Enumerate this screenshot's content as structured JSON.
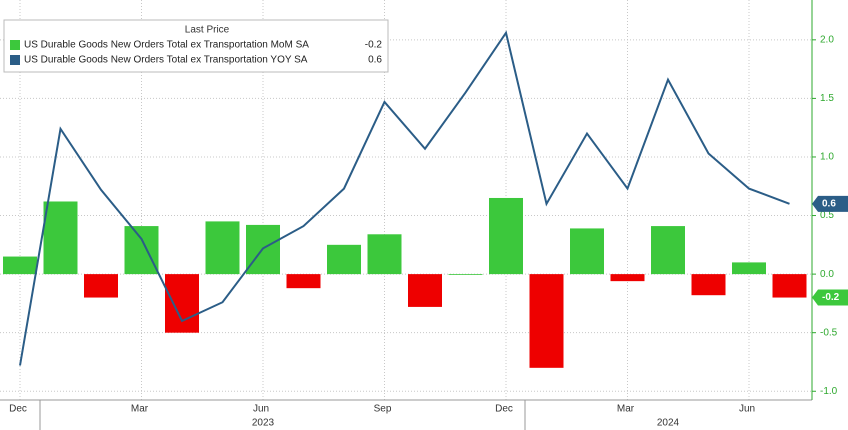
{
  "chart_data": {
    "type": "bar-line",
    "legend_title": "Last Price",
    "categories": [
      "Dec",
      null,
      null,
      "Mar",
      null,
      null,
      "Jun",
      null,
      null,
      "Sep",
      null,
      null,
      "Dec",
      null,
      null,
      "Mar",
      null,
      null,
      "Jun",
      null
    ],
    "year_labels": [
      null,
      null,
      null,
      null,
      null,
      null,
      "2023",
      null,
      null,
      null,
      null,
      null,
      null,
      null,
      null,
      null,
      "2024",
      null,
      null,
      null
    ],
    "series": [
      {
        "name": "US Durable Goods New Orders Total ex Transportation MoM SA",
        "type": "bar",
        "color": "#3cc83c",
        "negative_color": "#ee0000",
        "values": [
          0.15,
          0.62,
          -0.2,
          0.41,
          -0.5,
          0.45,
          0.42,
          -0.12,
          0.25,
          0.34,
          -0.28,
          0.0,
          0.65,
          -0.8,
          0.39,
          -0.06,
          0.41,
          -0.18,
          0.1,
          -0.2
        ]
      },
      {
        "name": "US Durable Goods New Orders Total ex Transportation YOY SA",
        "type": "line",
        "color": "#2b5d87",
        "values": [
          -0.78,
          1.24,
          0.72,
          0.3,
          -0.4,
          -0.24,
          0.22,
          0.41,
          0.73,
          1.47,
          1.07,
          1.55,
          2.06,
          0.6,
          1.2,
          0.73,
          1.66,
          1.03,
          0.73,
          0.6
        ]
      }
    ],
    "ylim": [
      -1.16,
      2.34
    ],
    "yticks": [
      {
        "value": -1.0,
        "label": "-1.0"
      },
      {
        "value": -0.5,
        "label": "-0.5"
      },
      {
        "value": 0.0,
        "label": "0.0"
      },
      {
        "value": 0.5,
        "label": "0.5"
      },
      {
        "value": 1.0,
        "label": "1.0"
      },
      {
        "value": 1.5,
        "label": "1.5"
      },
      {
        "value": 2.0,
        "label": "2.0"
      }
    ],
    "axis_color": "#2ea82e",
    "grid": true
  }
}
